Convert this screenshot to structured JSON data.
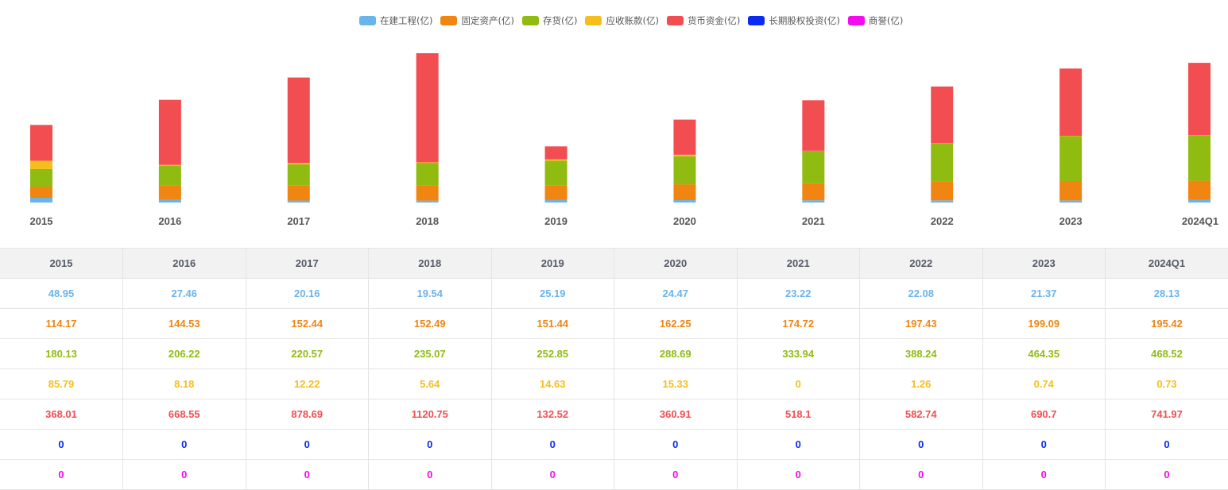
{
  "chart_data": {
    "type": "bar",
    "stacked": true,
    "categories": [
      "2015",
      "2016",
      "2017",
      "2018",
      "2019",
      "2020",
      "2021",
      "2022",
      "2023",
      "2024Q1"
    ],
    "series": [
      {
        "name": "在建工程(亿)",
        "color": "#6ab4ec",
        "values": [
          48.95,
          27.46,
          20.16,
          19.54,
          25.19,
          24.47,
          23.22,
          22.08,
          21.37,
          28.13
        ]
      },
      {
        "name": "固定资产(亿)",
        "color": "#f08511",
        "values": [
          114.17,
          144.53,
          152.44,
          152.49,
          151.44,
          162.25,
          174.72,
          197.43,
          199.09,
          195.42
        ]
      },
      {
        "name": "存货(亿)",
        "color": "#90bb10",
        "values": [
          180.13,
          206.22,
          220.57,
          235.07,
          252.85,
          288.69,
          333.94,
          388.24,
          464.35,
          468.52
        ]
      },
      {
        "name": "应收账款(亿)",
        "color": "#f5be1c",
        "values": [
          85.79,
          8.18,
          12.22,
          5.64,
          14.63,
          15.33,
          0,
          1.26,
          0.74,
          0.73
        ]
      },
      {
        "name": "货币资金(亿)",
        "color": "#f24d51",
        "values": [
          368.01,
          668.55,
          878.69,
          1120.75,
          132.52,
          360.91,
          518.1,
          582.74,
          690.7,
          741.97
        ]
      },
      {
        "name": "长期股权投资(亿)",
        "color": "#0b2cf0",
        "values": [
          0,
          0,
          0,
          0,
          0,
          0,
          0,
          0,
          0,
          0
        ]
      },
      {
        "name": "商誉(亿)",
        "color": "#f40cf0",
        "values": [
          0,
          0,
          0,
          0,
          0,
          0,
          0,
          0,
          0,
          0
        ]
      }
    ],
    "legend_position": "top-center",
    "grid": false,
    "ylim": [
      0,
      1550
    ]
  },
  "table": {
    "headers": [
      "2015",
      "2016",
      "2017",
      "2018",
      "2019",
      "2020",
      "2021",
      "2022",
      "2023",
      "2024Q1"
    ],
    "rows": [
      {
        "color": "#6ab4ec",
        "cells": [
          "48.95",
          "27.46",
          "20.16",
          "19.54",
          "25.19",
          "24.47",
          "23.22",
          "22.08",
          "21.37",
          "28.13"
        ]
      },
      {
        "color": "#f08511",
        "cells": [
          "114.17",
          "144.53",
          "152.44",
          "152.49",
          "151.44",
          "162.25",
          "174.72",
          "197.43",
          "199.09",
          "195.42"
        ]
      },
      {
        "color": "#90bb10",
        "cells": [
          "180.13",
          "206.22",
          "220.57",
          "235.07",
          "252.85",
          "288.69",
          "333.94",
          "388.24",
          "464.35",
          "468.52"
        ]
      },
      {
        "color": "#f5be1c",
        "cells": [
          "85.79",
          "8.18",
          "12.22",
          "5.64",
          "14.63",
          "15.33",
          "0",
          "1.26",
          "0.74",
          "0.73"
        ]
      },
      {
        "color": "#f24d51",
        "cells": [
          "368.01",
          "668.55",
          "878.69",
          "1120.75",
          "132.52",
          "360.91",
          "518.1",
          "582.74",
          "690.7",
          "741.97"
        ]
      },
      {
        "color": "#0b2cf0",
        "cells": [
          "0",
          "0",
          "0",
          "0",
          "0",
          "0",
          "0",
          "0",
          "0",
          "0"
        ]
      },
      {
        "color": "#f40cf0",
        "cells": [
          "0",
          "0",
          "0",
          "0",
          "0",
          "0",
          "0",
          "0",
          "0",
          "0"
        ]
      }
    ]
  }
}
